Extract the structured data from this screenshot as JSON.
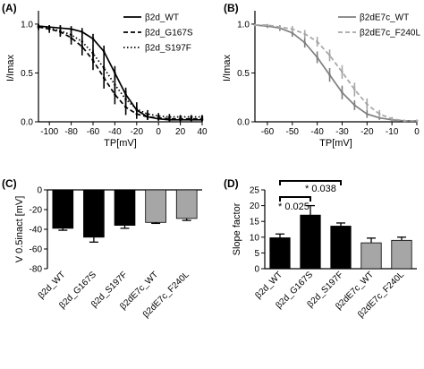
{
  "chart_data": [
    {
      "panel": "(A)",
      "type": "line",
      "xlabel": "TP[mV]",
      "ylabel": "I/Imax",
      "xlim": [
        -110,
        40
      ],
      "ylim": [
        0,
        1.1
      ],
      "xticks": [
        -100,
        -80,
        -60,
        -40,
        -20,
        0,
        20,
        40
      ],
      "yticks": [
        0.0,
        0.5,
        1.0
      ],
      "legend_position": "top-right",
      "series": [
        {
          "name": "β2d_WT",
          "line_style": "solid",
          "color": "#000000",
          "x": [
            -110,
            -100,
            -90,
            -80,
            -70,
            -60,
            -50,
            -40,
            -30,
            -20,
            -10,
            0,
            10,
            20,
            30,
            40
          ],
          "y": [
            0.98,
            0.97,
            0.96,
            0.95,
            0.92,
            0.85,
            0.72,
            0.5,
            0.28,
            0.12,
            0.05,
            0.03,
            0.02,
            0.02,
            0.02,
            0.02
          ],
          "err": [
            0.02,
            0.02,
            0.03,
            0.03,
            0.04,
            0.05,
            0.06,
            0.07,
            0.07,
            0.05,
            0.03,
            0.02,
            0.02,
            0.02,
            0.02,
            0.02
          ]
        },
        {
          "name": "β2d_G167S",
          "line_style": "dashed",
          "color": "#000000",
          "x": [
            -110,
            -100,
            -90,
            -80,
            -70,
            -60,
            -50,
            -40,
            -30,
            -20,
            -10,
            0,
            10,
            20,
            30,
            40
          ],
          "y": [
            0.97,
            0.95,
            0.92,
            0.86,
            0.77,
            0.63,
            0.45,
            0.28,
            0.15,
            0.08,
            0.05,
            0.04,
            0.03,
            0.03,
            0.03,
            0.03
          ],
          "err": [
            0.03,
            0.04,
            0.05,
            0.07,
            0.09,
            0.1,
            0.11,
            0.1,
            0.08,
            0.05,
            0.03,
            0.02,
            0.02,
            0.02,
            0.02,
            0.02
          ]
        },
        {
          "name": "β2d_S197F",
          "line_style": "dotted",
          "color": "#000000",
          "x": [
            -110,
            -100,
            -90,
            -80,
            -70,
            -60,
            -50,
            -40,
            -30,
            -20,
            -10,
            0,
            10,
            20,
            30,
            40
          ],
          "y": [
            0.97,
            0.96,
            0.93,
            0.89,
            0.82,
            0.7,
            0.55,
            0.38,
            0.23,
            0.13,
            0.08,
            0.06,
            0.05,
            0.05,
            0.05,
            0.05
          ],
          "err": [
            0.03,
            0.03,
            0.05,
            0.06,
            0.08,
            0.1,
            0.11,
            0.1,
            0.09,
            0.07,
            0.04,
            0.03,
            0.03,
            0.02,
            0.02,
            0.02
          ]
        }
      ]
    },
    {
      "panel": "(B)",
      "type": "line",
      "xlabel": "TP[mV]",
      "ylabel": "I/Imax",
      "xlim": [
        -65,
        0
      ],
      "ylim": [
        0,
        1.1
      ],
      "xticks": [
        -60,
        -50,
        -40,
        -30,
        -20,
        -10,
        0
      ],
      "yticks": [
        0.0,
        0.5,
        1.0
      ],
      "legend_position": "top-right",
      "series": [
        {
          "name": "β2dE7c_WT",
          "line_style": "solid",
          "color": "#7f7f7f",
          "x": [
            -65,
            -60,
            -55,
            -50,
            -45,
            -40,
            -35,
            -30,
            -25,
            -20,
            -15,
            -10,
            -5,
            0
          ],
          "y": [
            0.99,
            0.98,
            0.96,
            0.91,
            0.81,
            0.66,
            0.48,
            0.3,
            0.17,
            0.08,
            0.04,
            0.02,
            0.01,
            0.01
          ],
          "err": [
            0.01,
            0.02,
            0.03,
            0.04,
            0.05,
            0.06,
            0.07,
            0.07,
            0.05,
            0.04,
            0.02,
            0.01,
            0.01,
            0.01
          ]
        },
        {
          "name": "β2dE7c_F240L",
          "line_style": "dashed",
          "color": "#a6a6a6",
          "x": [
            -65,
            -60,
            -55,
            -50,
            -45,
            -40,
            -35,
            -30,
            -25,
            -20,
            -15,
            -10,
            -5,
            0
          ],
          "y": [
            0.99,
            0.99,
            0.97,
            0.95,
            0.9,
            0.82,
            0.68,
            0.51,
            0.33,
            0.18,
            0.08,
            0.03,
            0.01,
            0.01
          ],
          "err": [
            0.01,
            0.01,
            0.02,
            0.03,
            0.04,
            0.05,
            0.06,
            0.07,
            0.07,
            0.06,
            0.04,
            0.02,
            0.01,
            0.01
          ]
        }
      ]
    },
    {
      "panel": "(C)",
      "type": "bar",
      "ylabel": "V 0.5inact [mV]",
      "ylim": [
        -80,
        0
      ],
      "yticks": [
        0,
        -20,
        -40,
        -60,
        -80
      ],
      "categories": [
        "β2d_WT",
        "β2d_G167S",
        "β2d_S197F",
        "β2dE7c_WT",
        "β2dE7c_F240L"
      ],
      "values": [
        -39,
        -48,
        -36,
        -33,
        -29
      ],
      "errors": [
        2,
        5,
        3,
        1,
        2
      ],
      "colors": [
        "#000000",
        "#000000",
        "#000000",
        "#a6a6a6",
        "#a6a6a6"
      ]
    },
    {
      "panel": "(D)",
      "type": "bar",
      "ylabel": "Slope factor",
      "ylim": [
        0,
        25
      ],
      "yticks": [
        0,
        5,
        10,
        15,
        20,
        25
      ],
      "categories": [
        "β2d_WT",
        "β2d_G167S",
        "β2d_S197F",
        "β2dE7c_WT",
        "β2dE7c_F240L"
      ],
      "values": [
        9.8,
        17,
        13.5,
        8.2,
        9
      ],
      "errors": [
        1.2,
        3,
        1,
        1.5,
        1
      ],
      "colors": [
        "#000000",
        "#000000",
        "#000000",
        "#a6a6a6",
        "#a6a6a6"
      ],
      "annotations": [
        {
          "text": "* 0.038",
          "from": 0,
          "to": 2
        },
        {
          "text": "* 0.025",
          "from": 0,
          "to": 1
        }
      ]
    }
  ]
}
